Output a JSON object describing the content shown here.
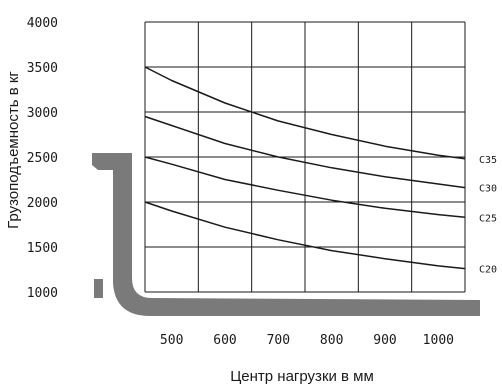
{
  "chart_data": {
    "type": "line",
    "xlabel": "Центр нагрузки в мм",
    "ylabel": "Грузоподъемность в кг",
    "xlim": [
      450,
      1050
    ],
    "ylim": [
      1000,
      4000
    ],
    "x_ticks": [
      "500",
      "600",
      "700",
      "800",
      "900",
      "1000"
    ],
    "y_ticks": [
      "1000",
      "1500",
      "2000",
      "2500",
      "3000",
      "3500",
      "4000"
    ],
    "grid": true,
    "x": [
      450,
      500,
      600,
      700,
      800,
      900,
      1000,
      1050
    ],
    "series": [
      {
        "name": "C35",
        "values": [
          3500,
          3350,
          3100,
          2900,
          2750,
          2620,
          2520,
          2480
        ]
      },
      {
        "name": "C30",
        "values": [
          2950,
          2850,
          2650,
          2500,
          2380,
          2280,
          2200,
          2160
        ]
      },
      {
        "name": "C25",
        "values": [
          2500,
          2420,
          2250,
          2130,
          2020,
          1930,
          1860,
          1830
        ]
      },
      {
        "name": "C20",
        "values": [
          2000,
          1900,
          1720,
          1580,
          1460,
          1370,
          1290,
          1260
        ]
      }
    ],
    "colors": {
      "lines": "#1a1a1a",
      "grid": "#1a1a1a",
      "fork": "#7a7a7a"
    }
  }
}
